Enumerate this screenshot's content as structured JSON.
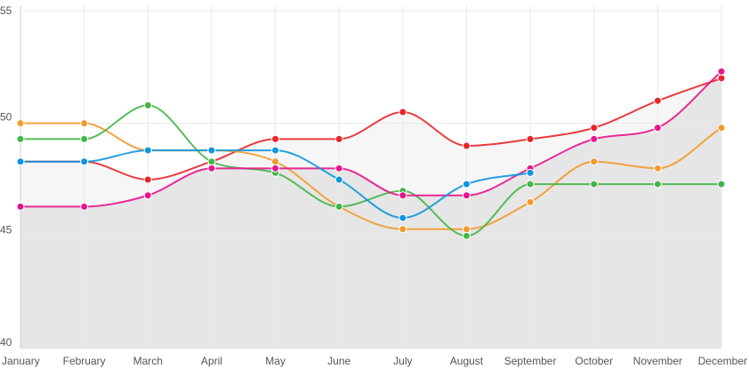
{
  "chart_data": {
    "type": "line",
    "categories": [
      "January",
      "February",
      "March",
      "April",
      "May",
      "June",
      "July",
      "August",
      "September",
      "October",
      "November",
      "December"
    ],
    "ylim": [
      40,
      55
    ],
    "yticks": [
      40,
      45,
      50,
      55
    ],
    "grid": true,
    "legend": "none",
    "series": [
      {
        "color": "#e8262a",
        "fill": "#f6f6f6",
        "values": [
          48.3,
          48.3,
          47.5,
          48.3,
          49.3,
          49.3,
          50.5,
          49.0,
          49.3,
          49.8,
          51.0,
          52.0
        ]
      },
      {
        "color": "#f39a2b",
        "fill": null,
        "values": [
          50.0,
          50.0,
          48.8,
          48.8,
          48.3,
          46.3,
          45.3,
          45.3,
          46.5,
          48.3,
          48.0,
          49.8
        ]
      },
      {
        "color": "#44b649",
        "fill": null,
        "values": [
          49.3,
          49.3,
          50.8,
          48.3,
          47.8,
          46.3,
          47.0,
          45.0,
          47.3,
          47.3,
          47.3,
          47.3
        ]
      },
      {
        "color": "#e8148b",
        "fill": "#e6e6e6",
        "values": [
          46.3,
          46.3,
          46.8,
          48.0,
          48.0,
          48.0,
          46.8,
          46.8,
          48.0,
          49.3,
          49.8,
          52.3
        ]
      },
      {
        "color": "#0e96dc",
        "fill": null,
        "values": [
          48.3,
          48.3,
          48.8,
          48.8,
          48.8,
          47.5,
          45.8,
          47.3,
          47.8,
          null,
          null,
          null
        ]
      }
    ]
  }
}
